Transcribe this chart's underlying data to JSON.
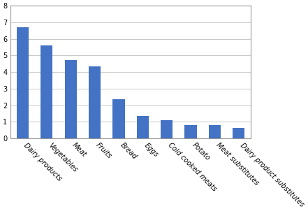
{
  "categories": [
    "Dairy products",
    "Vegetables",
    "Meat",
    "Fruits",
    "Bread",
    "Eggs",
    "Cold cooked meats",
    "Potato",
    "Meat substitutes",
    "Dairy product substitutes"
  ],
  "values": [
    6.7,
    5.6,
    4.7,
    4.35,
    2.35,
    1.35,
    1.1,
    0.82,
    0.82,
    0.65
  ],
  "bar_color": "#4472c4",
  "ylim": [
    0,
    8
  ],
  "yticks": [
    0,
    1,
    2,
    3,
    4,
    5,
    6,
    7,
    8
  ],
  "grid_color": "#c0c0c0",
  "background_color": "#ffffff",
  "tick_label_fontsize": 7,
  "bar_width": 0.5,
  "label_rotation": -45,
  "label_ha": "left"
}
